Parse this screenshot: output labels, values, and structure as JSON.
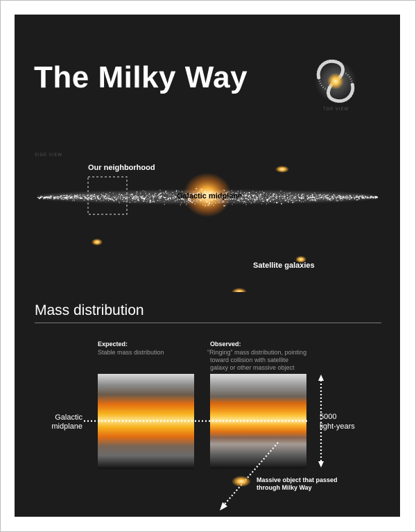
{
  "title": "The Milky Way",
  "top_view_label": "TOP VIEW",
  "side_view_label": "SIDE VIEW",
  "side_view": {
    "neighborhood_label": "Our neighborhood",
    "midplane_label": "Galactic midplane",
    "satellites_label": "Satellite galaxies"
  },
  "mass_section": {
    "heading": "Mass distribution",
    "expected_title": "Expected:",
    "expected_desc": "Stable mass distribution",
    "observed_title": "Observed:",
    "observed_desc_1": "“Ringing” mass distribution, pointing",
    "observed_desc_2": "toward collision with satellite",
    "observed_desc_3": "galaxy or other massive object",
    "midplane_label_1": "Galactic",
    "midplane_label_2": "midplane",
    "scale_value": "5000",
    "scale_unit": "light-years",
    "massive_object_1": "Massive object that passed",
    "massive_object_2": "through Milky Way"
  },
  "colors": {
    "background": "#1c1c1c",
    "glow_core": "#ffe08a",
    "glow_mid": "#f7a21e",
    "star_white": "#ffffff",
    "text_gray": "#9a9a9a"
  }
}
